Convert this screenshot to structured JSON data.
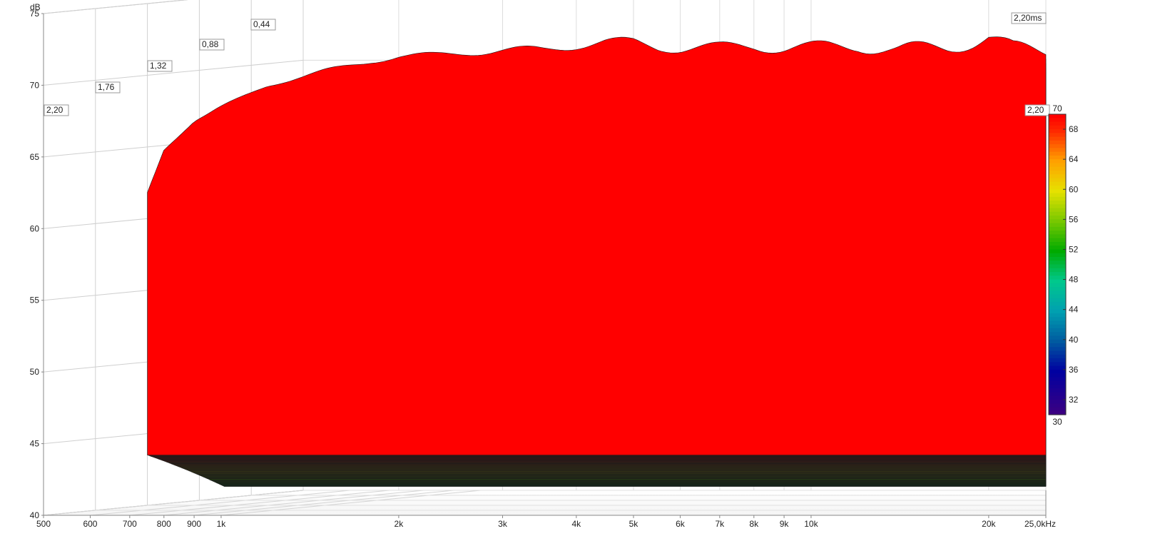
{
  "chart_data": {
    "type": "area",
    "subtype": "waterfall-3d",
    "title": "",
    "ylabel": "dB",
    "x_unit": "kHz",
    "time_unit": "ms",
    "xlim": [
      500,
      25000
    ],
    "ylim": [
      40,
      75
    ],
    "x_scale": "log",
    "grid": true,
    "y_ticks": [
      75,
      70,
      65,
      60,
      55,
      50,
      45,
      40
    ],
    "x_ticks": [
      {
        "v": 500,
        "label": "500"
      },
      {
        "v": 600,
        "label": "600"
      },
      {
        "v": 700,
        "label": "700"
      },
      {
        "v": 800,
        "label": "800"
      },
      {
        "v": 900,
        "label": "900"
      },
      {
        "v": 1000,
        "label": "1k"
      },
      {
        "v": 2000,
        "label": "2k"
      },
      {
        "v": 3000,
        "label": "3k"
      },
      {
        "v": 4000,
        "label": "4k"
      },
      {
        "v": 5000,
        "label": "5k"
      },
      {
        "v": 6000,
        "label": "6k"
      },
      {
        "v": 7000,
        "label": "7k"
      },
      {
        "v": 8000,
        "label": "8k"
      },
      {
        "v": 9000,
        "label": "9k"
      },
      {
        "v": 10000,
        "label": "10k"
      },
      {
        "v": 20000,
        "label": "20k"
      },
      {
        "v": 25000,
        "label": "25,0kHz"
      }
    ],
    "time_ticks": [
      "0,44",
      "0,88",
      "1,32",
      "1,76",
      "2,20"
    ],
    "time_end_label": "2,20ms",
    "time_end_right_label": "2,20",
    "colorbar": {
      "min_label": "30",
      "max_label": "70",
      "ticks": [
        "68",
        "64",
        "60",
        "56",
        "52",
        "48",
        "44",
        "40",
        "36",
        "32"
      ],
      "colors": [
        "#ff0000",
        "#ff8000",
        "#ffe000",
        "#88cc00",
        "#00aa00",
        "#00cc88",
        "#00a0b0",
        "#0060a0",
        "#0000a0",
        "#400080"
      ]
    },
    "front_slice": {
      "x": [
        750,
        800,
        900,
        1000,
        1200,
        1500,
        1800,
        2000,
        2300,
        2600,
        3000,
        3500,
        4000,
        4500,
        5000,
        5500,
        6000,
        7000,
        8000,
        9000,
        10000,
        12000,
        14000,
        17000,
        20000,
        22000,
        25000
      ],
      "y": [
        62.5,
        65.5,
        67.5,
        68.5,
        70.0,
        71.0,
        71.7,
        72.0,
        72.1,
        72.3,
        72.4,
        72.5,
        72.8,
        73.0,
        73.0,
        72.7,
        72.6,
        72.6,
        72.8,
        72.6,
        72.6,
        72.8,
        72.4,
        72.7,
        73.3,
        72.5,
        72.5
      ]
    },
    "slice_count": 110
  }
}
